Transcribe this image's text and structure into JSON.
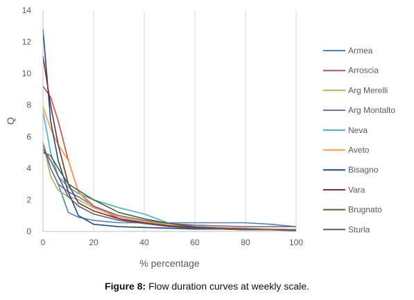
{
  "caption": {
    "label": "Figure 8:",
    "text": "Flow duration curves at weekly scale."
  },
  "chart_data": {
    "type": "line",
    "title": "",
    "xlabel": "% percentage",
    "ylabel": "Q",
    "xlim": [
      0,
      100
    ],
    "ylim": [
      0,
      14
    ],
    "xticks": [
      0,
      20,
      40,
      60,
      80,
      100
    ],
    "yticks": [
      0,
      2,
      4,
      6,
      8,
      10,
      12,
      14
    ],
    "grid": "vertical",
    "legend_position": "right",
    "series": [
      {
        "name": "Armea",
        "color": "#4f81bd",
        "x": [
          0,
          3,
          6,
          10,
          14,
          20,
          30,
          40,
          50,
          60,
          70,
          80,
          90,
          100
        ],
        "y": [
          5.5,
          4.0,
          3.0,
          1.2,
          0.9,
          0.7,
          0.55,
          0.55,
          0.55,
          0.55,
          0.55,
          0.55,
          0.45,
          0.3
        ]
      },
      {
        "name": "Arroscia",
        "color": "#c0504d",
        "x": [
          0,
          3,
          6,
          10,
          14,
          20,
          30,
          40,
          50,
          60,
          70,
          80,
          90,
          100
        ],
        "y": [
          9.2,
          8.5,
          7.0,
          4.5,
          2.5,
          1.6,
          0.8,
          0.5,
          0.35,
          0.3,
          0.25,
          0.2,
          0.15,
          0.1
        ]
      },
      {
        "name": "Arg Merelli",
        "color": "#9bbb59",
        "x": [
          0,
          3,
          6,
          10,
          14,
          20,
          30,
          40,
          50,
          60,
          70,
          80,
          90,
          100
        ],
        "y": [
          5.6,
          3.5,
          2.6,
          2.2,
          2.0,
          1.5,
          1.0,
          0.7,
          0.4,
          0.25,
          0.2,
          0.15,
          0.1,
          0.05
        ]
      },
      {
        "name": "Arg Montalto",
        "color": "#8064a2",
        "x": [
          0,
          3,
          6,
          10,
          14,
          20,
          30,
          40,
          50,
          60,
          70,
          80,
          90,
          100
        ],
        "y": [
          5.6,
          4.0,
          3.0,
          2.5,
          2.2,
          1.6,
          1.0,
          0.7,
          0.5,
          0.4,
          0.35,
          0.3,
          0.3,
          0.3
        ]
      },
      {
        "name": "Neva",
        "color": "#4bacc6",
        "x": [
          0,
          3,
          6,
          10,
          14,
          20,
          30,
          40,
          50,
          60,
          70,
          80,
          90,
          100
        ],
        "y": [
          7.6,
          5.0,
          3.5,
          2.8,
          2.4,
          2.0,
          1.5,
          1.1,
          0.5,
          0.3,
          0.2,
          0.15,
          0.1,
          0.1
        ]
      },
      {
        "name": "Aveto",
        "color": "#f79646",
        "x": [
          0,
          3,
          6,
          10,
          14,
          20,
          30,
          40,
          50,
          60,
          70,
          80,
          90,
          100
        ],
        "y": [
          7.9,
          6.5,
          5.5,
          4.5,
          2.5,
          1.5,
          0.9,
          0.6,
          0.4,
          0.3,
          0.25,
          0.2,
          0.15,
          0.1
        ]
      },
      {
        "name": "Bisagno",
        "color": "#1f497d",
        "x": [
          0,
          3,
          6,
          10,
          14,
          20,
          30,
          40,
          50,
          60,
          70,
          80,
          90,
          100
        ],
        "y": [
          12.8,
          7.0,
          4.5,
          2.5,
          1.0,
          0.45,
          0.3,
          0.25,
          0.2,
          0.15,
          0.15,
          0.1,
          0.1,
          0.1
        ]
      },
      {
        "name": "Vara",
        "color": "#772c2a",
        "x": [
          0,
          3,
          6,
          10,
          14,
          20,
          30,
          40,
          50,
          60,
          70,
          80,
          90,
          100
        ],
        "y": [
          11.1,
          8.0,
          5.5,
          3.0,
          1.8,
          1.3,
          0.8,
          0.55,
          0.35,
          0.25,
          0.2,
          0.15,
          0.1,
          0.1
        ]
      },
      {
        "name": "Brugnato",
        "color": "#4f6228",
        "x": [
          0,
          3,
          6,
          10,
          14,
          20,
          30,
          40,
          50,
          60,
          70,
          80,
          90,
          100
        ],
        "y": [
          5.0,
          4.8,
          4.0,
          3.0,
          2.6,
          2.0,
          1.2,
          0.8,
          0.5,
          0.3,
          0.2,
          0.15,
          0.1,
          0.1
        ]
      },
      {
        "name": "Sturla",
        "color": "#5b5b7a",
        "x": [
          0,
          3,
          6,
          10,
          14,
          20,
          30,
          40,
          50,
          60,
          70,
          80,
          90,
          100
        ],
        "y": [
          5.2,
          4.5,
          3.5,
          2.2,
          1.6,
          1.1,
          0.7,
          0.5,
          0.3,
          0.2,
          0.15,
          0.1,
          0.1,
          0.05
        ]
      }
    ]
  }
}
